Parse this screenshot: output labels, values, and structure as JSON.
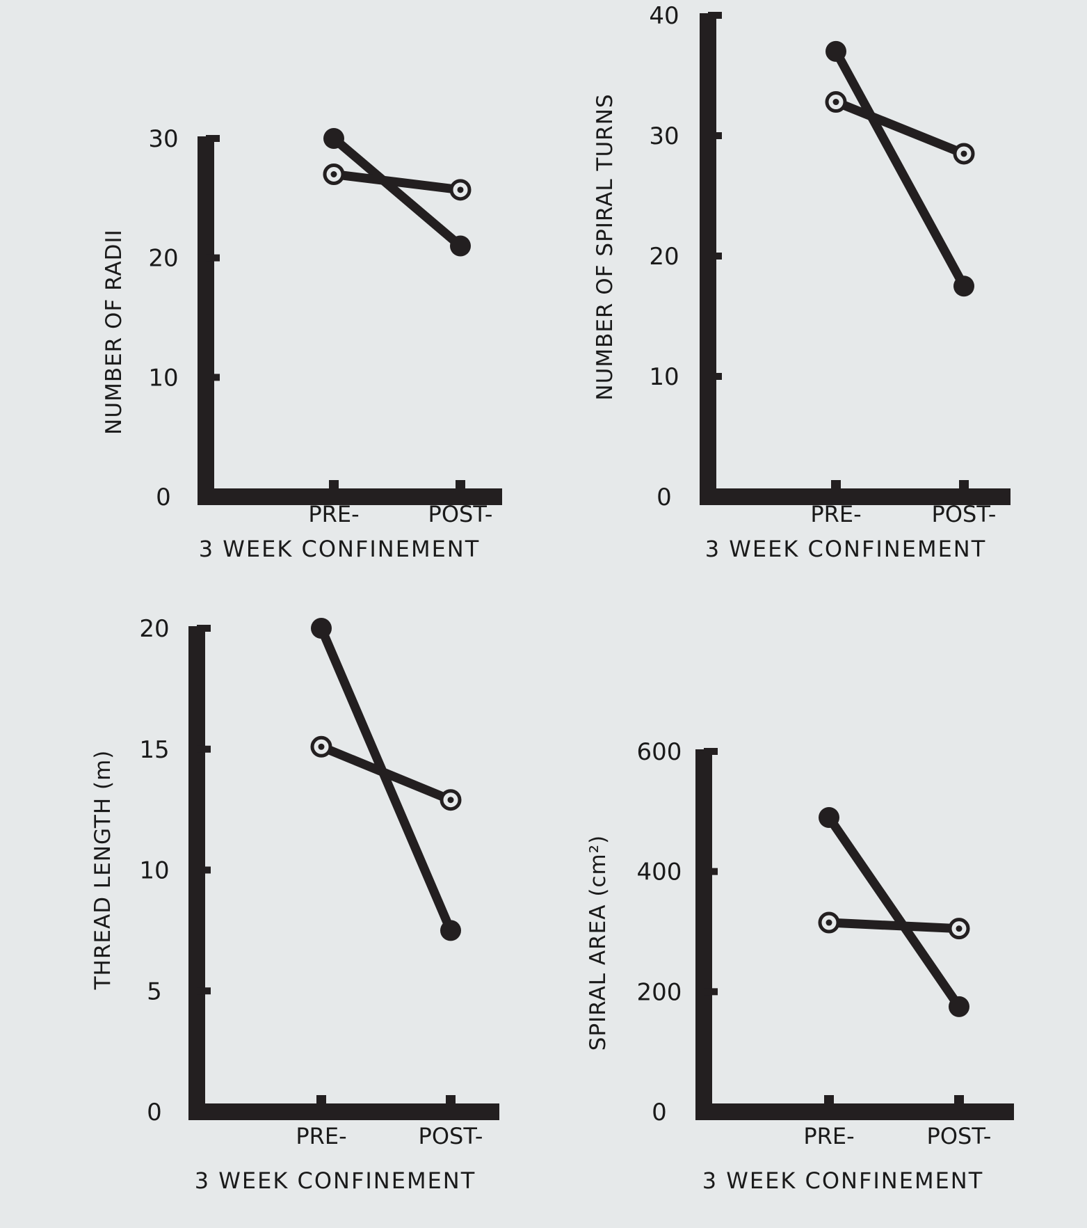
{
  "chart_data": [
    {
      "type": "line",
      "ylabel": "NUMBER OF RADII",
      "xlabel": "3 WEEK CONFINEMENT",
      "categories": [
        "PRE-",
        "POST-"
      ],
      "yticks": [
        0,
        10,
        20,
        30
      ],
      "ylim": [
        0,
        30
      ],
      "series": [
        {
          "marker": "filled",
          "values": [
            30,
            21
          ]
        },
        {
          "marker": "open",
          "values": [
            27,
            25.7
          ]
        }
      ]
    },
    {
      "type": "line",
      "ylabel": "NUMBER OF SPIRAL TURNS",
      "xlabel": "3 WEEK CONFINEMENT",
      "categories": [
        "PRE-",
        "POST-"
      ],
      "yticks": [
        0,
        10,
        20,
        30,
        40
      ],
      "ylim": [
        0,
        40
      ],
      "series": [
        {
          "marker": "filled",
          "values": [
            37,
            17.5
          ]
        },
        {
          "marker": "open",
          "values": [
            32.8,
            28.5
          ]
        }
      ]
    },
    {
      "type": "line",
      "ylabel": "THREAD LENGTH (m)",
      "xlabel": "3 WEEK CONFINEMENT",
      "categories": [
        "PRE-",
        "POST-"
      ],
      "yticks": [
        0,
        5,
        10,
        15,
        20
      ],
      "ylim": [
        0,
        20
      ],
      "series": [
        {
          "marker": "filled",
          "values": [
            20,
            7.5
          ]
        },
        {
          "marker": "open",
          "values": [
            15.1,
            12.9
          ]
        }
      ]
    },
    {
      "type": "line",
      "ylabel": "SPIRAL AREA (cm²)",
      "xlabel": "3 WEEK CONFINEMENT",
      "categories": [
        "PRE-",
        "POST-"
      ],
      "yticks": [
        0,
        200,
        400,
        600
      ],
      "ylim": [
        0,
        600
      ],
      "series": [
        {
          "marker": "filled",
          "values": [
            490,
            175
          ]
        },
        {
          "marker": "open",
          "values": [
            315,
            305
          ]
        }
      ]
    }
  ]
}
